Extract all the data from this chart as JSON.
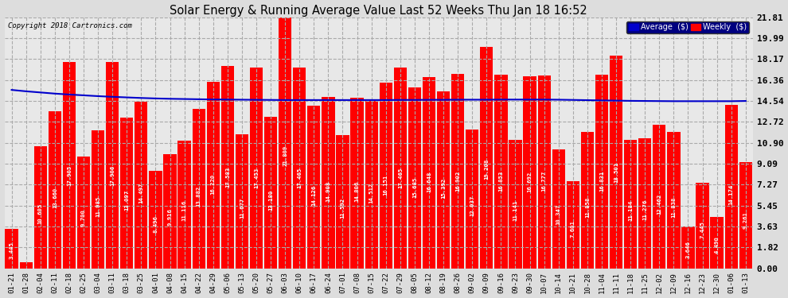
{
  "title": "Solar Energy & Running Average Value Last 52 Weeks Thu Jan 18 16:52",
  "copyright": "Copyright 2018 Cartronics.com",
  "bar_color": "#FF0000",
  "avg_line_color": "#0000CC",
  "background_color": "#DDDDDD",
  "plot_bg_color": "#E8E8E8",
  "grid_color": "#AAAAAA",
  "grid_style": "--",
  "yticks": [
    0.0,
    1.82,
    3.63,
    5.45,
    7.27,
    9.09,
    10.9,
    12.72,
    14.54,
    16.36,
    18.17,
    19.99,
    21.81
  ],
  "legend_avg_color": "#0000CC",
  "legend_weekly_color": "#FF0000",
  "legend_bg": "#000080",
  "categories": [
    "01-21",
    "01-28",
    "02-04",
    "02-11",
    "02-18",
    "02-25",
    "03-04",
    "03-11",
    "03-18",
    "03-25",
    "04-01",
    "04-08",
    "04-15",
    "04-22",
    "04-29",
    "05-06",
    "05-13",
    "05-20",
    "05-27",
    "06-03",
    "06-10",
    "06-17",
    "06-24",
    "07-01",
    "07-08",
    "07-15",
    "07-22",
    "07-29",
    "08-05",
    "08-12",
    "08-19",
    "08-26",
    "09-02",
    "09-09",
    "09-16",
    "09-23",
    "09-30",
    "10-07",
    "10-14",
    "10-21",
    "10-28",
    "11-04",
    "11-11",
    "11-18",
    "11-25",
    "12-02",
    "12-09",
    "12-16",
    "12-23",
    "12-30",
    "01-06",
    "01-13"
  ],
  "values": [
    3.445,
    0.554,
    10.605,
    13.66,
    17.905,
    9.7,
    11.985,
    17.906,
    13.097,
    14.497,
    8.496,
    9.916,
    11.116,
    13.882,
    16.22,
    17.583,
    11.677,
    17.453,
    13.18,
    21.809,
    17.465,
    14.126,
    14.908,
    11.592,
    14.806,
    14.512,
    16.151,
    17.465,
    15.685,
    16.648,
    15.392,
    16.902,
    12.037,
    19.208,
    16.853,
    11.141,
    16.692,
    16.777,
    10.347,
    7.601,
    11.858,
    16.831,
    18.501,
    11.184,
    11.276,
    12.462,
    11.838,
    3.646,
    7.445,
    4.49,
    14.174,
    9.261
  ],
  "avg_values": [
    15.5,
    15.38,
    15.28,
    15.18,
    15.1,
    15.03,
    14.96,
    14.9,
    14.85,
    14.8,
    14.76,
    14.73,
    14.71,
    14.69,
    14.67,
    14.66,
    14.65,
    14.64,
    14.63,
    14.62,
    14.62,
    14.62,
    14.62,
    14.62,
    14.62,
    14.62,
    14.62,
    14.63,
    14.63,
    14.64,
    14.64,
    14.65,
    14.65,
    14.65,
    14.66,
    14.66,
    14.66,
    14.66,
    14.65,
    14.63,
    14.61,
    14.59,
    14.57,
    14.55,
    14.54,
    14.53,
    14.52,
    14.52,
    14.52,
    14.52,
    14.52,
    14.54
  ],
  "ylim": [
    0.0,
    21.81
  ],
  "figsize": [
    9.9,
    3.75
  ],
  "dpi": 100
}
